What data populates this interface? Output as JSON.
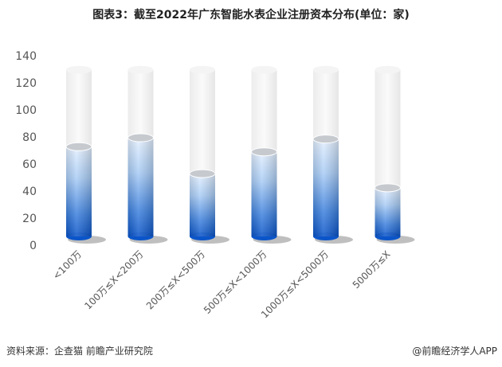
{
  "chart_data": {
    "type": "bar",
    "style": "3d-cylinder",
    "title": "图表3：截至2022年广东智能水表企业注册资本分布(单位：家)",
    "categories": [
      "<100万",
      "100万≤X<200万",
      "200万≤X<500万",
      "500万≤X<1000万",
      "1000万≤X<5000万",
      "5000万≤X"
    ],
    "values": [
      70,
      77,
      49,
      66,
      76,
      38
    ],
    "ylim": [
      0,
      140
    ],
    "yticks": [
      0,
      20,
      40,
      60,
      80,
      100,
      120,
      140
    ],
    "xlabel": "",
    "ylabel": "",
    "grid": false,
    "colors": {
      "bar_top": "#dcebff",
      "bar_bottom": "#0d5bd0",
      "empty_cylinder": "#f2f2f2"
    }
  },
  "footer": {
    "source": "资料来源：企查猫 前瞻产业研究院",
    "brand": "@前瞻经济学人APP"
  }
}
